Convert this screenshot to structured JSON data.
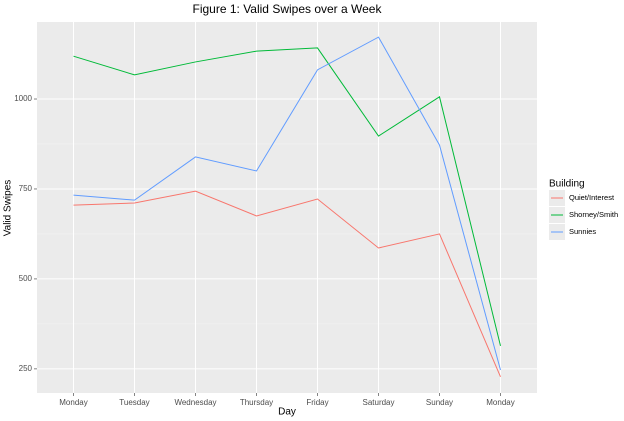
{
  "chart_data": {
    "type": "line",
    "title": "Figure 1: Valid Swipes over a Week",
    "x_label": "Day",
    "y_label": "Valid Swipes",
    "categories": [
      "Monday",
      "Tuesday",
      "Wednesday",
      "Thursday",
      "Friday",
      "Saturday",
      "Sunday",
      "Monday"
    ],
    "series": [
      {
        "name": "Quiet/Interest",
        "color": "#f8766d",
        "values": [
          705,
          711,
          744,
          675,
          722,
          586,
          625,
          228
        ]
      },
      {
        "name": "Shorney/Smith",
        "color": "#00ba38",
        "values": [
          1119,
          1067,
          1103,
          1133,
          1142,
          897,
          1006,
          314
        ]
      },
      {
        "name": "Sunnies",
        "color": "#619cff",
        "values": [
          733,
          719,
          839,
          800,
          1081,
          1172,
          872,
          247
        ]
      }
    ],
    "legend_title": "Building",
    "ylim": [
      183,
      1214
    ],
    "yticks": [
      250,
      500,
      750,
      1000
    ],
    "grid": true
  }
}
